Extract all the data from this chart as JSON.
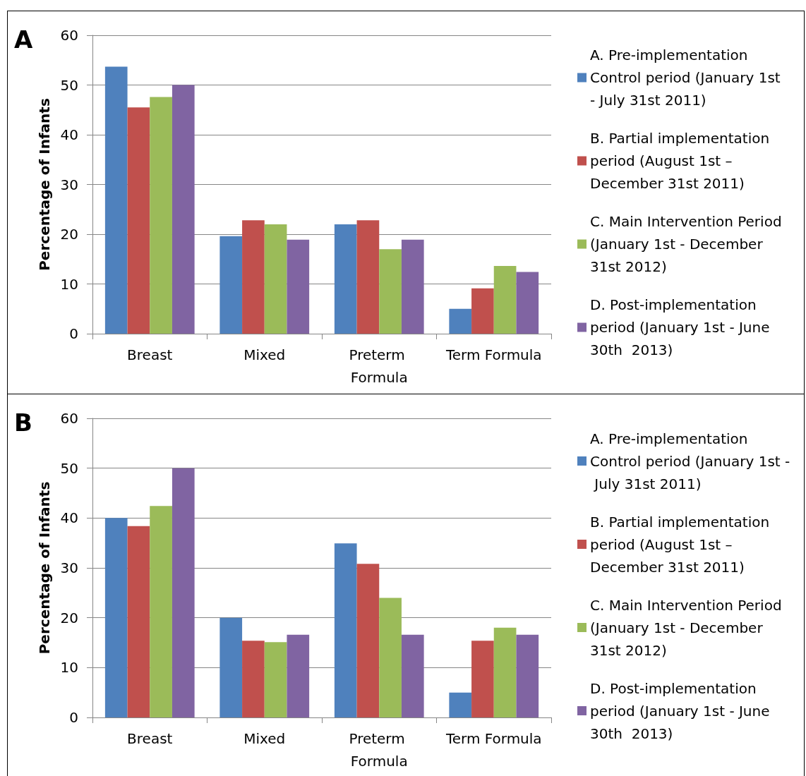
{
  "chart_data": [
    {
      "type": "bar",
      "title": "A",
      "ylabel": "Percentage of Infants",
      "categories": [
        "Breast",
        "Mixed",
        "Preterm Formula",
        "Term Formula"
      ],
      "ylim": [
        0,
        60
      ],
      "yticks": [
        0,
        10,
        20,
        30,
        40,
        50,
        60
      ],
      "grid": "y",
      "legend": "right",
      "series": [
        {
          "name": "A. Pre-implementation Control period (January 1st  - July 31st 2011)",
          "color": "#4f81bd",
          "values": [
            53.7,
            19.6,
            22,
            5
          ]
        },
        {
          "name": "B. Partial implementation period (August 1st – December 31st 2011)",
          "color": "#c0504d",
          "values": [
            45.5,
            22.8,
            22.8,
            9.1
          ]
        },
        {
          "name": "C. Main Intervention Period (January 1st - December 31st 2012)",
          "color": "#9bbb59",
          "values": [
            47.6,
            22,
            17,
            13.6
          ]
        },
        {
          "name": "D. Post-implementation period (January 1st - June 30th  2013)",
          "color": "#8064a2",
          "values": [
            50,
            18.9,
            18.9,
            12.4
          ]
        }
      ]
    },
    {
      "type": "bar",
      "title": "B",
      "ylabel": "Percentage of Infants",
      "categories": [
        "Breast",
        "Mixed",
        "Preterm Formula",
        "Term Formula"
      ],
      "ylim": [
        0,
        60
      ],
      "yticks": [
        0,
        10,
        20,
        30,
        40,
        50,
        60
      ],
      "grid": "y",
      "legend": "right",
      "series": [
        {
          "name": "A. Pre-implementation Control period (January 1st - July 31st 2011)",
          "color": "#4f81bd",
          "values": [
            40,
            20,
            34.9,
            5
          ]
        },
        {
          "name": "B. Partial implementation period (August 1st – December 31st 2011)",
          "color": "#c0504d",
          "values": [
            38.4,
            15.4,
            30.8,
            15.4
          ]
        },
        {
          "name": "C. Main Intervention Period (January 1st - December 31st 2012)",
          "color": "#9bbb59",
          "values": [
            42.4,
            15.1,
            24,
            18
          ]
        },
        {
          "name": "D. Post-implementation period (January 1st - June 30th  2013)",
          "color": "#8064a2",
          "values": [
            50,
            16.6,
            16.6,
            16.6
          ]
        }
      ]
    }
  ]
}
